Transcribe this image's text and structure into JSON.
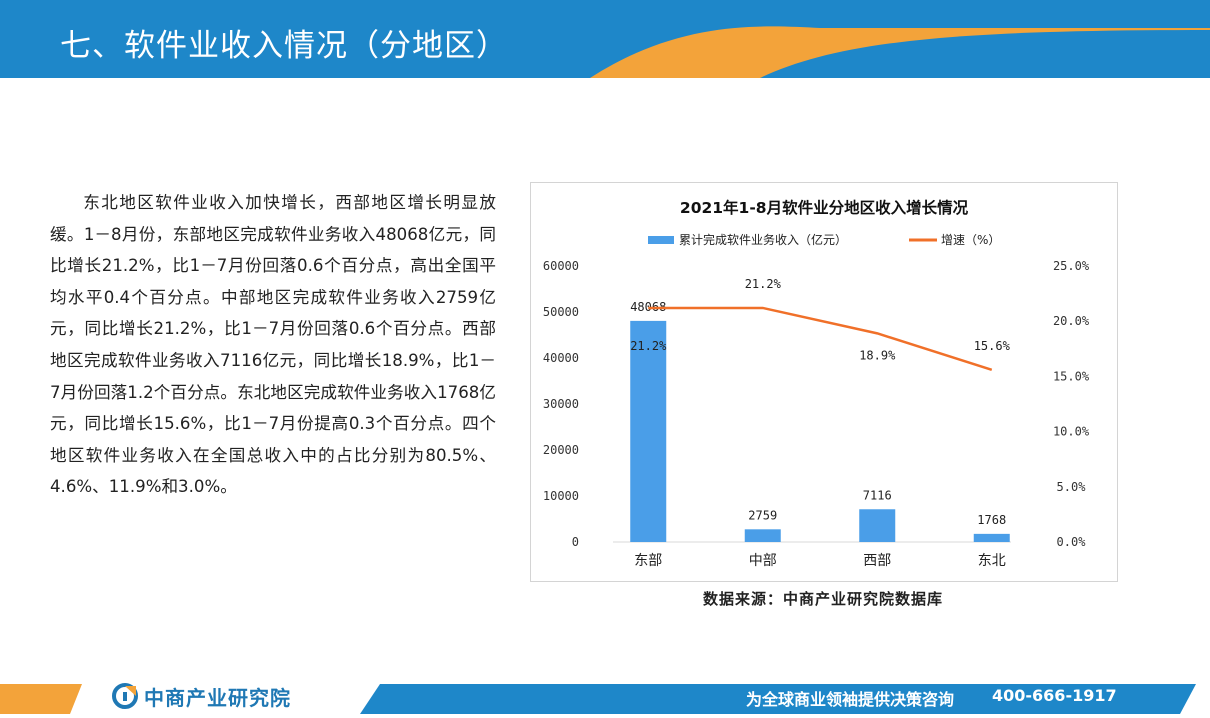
{
  "header": {
    "title": "七、软件业收入情况（分地区）",
    "colors": {
      "blue": "#1e87c9",
      "orange": "#f3a33a"
    }
  },
  "body": {
    "paragraph": "东北地区软件业收入加快增长，西部地区增长明显放缓。1－8月份，东部地区完成软件业务收入48068亿元，同比增长21.2%，比1－7月份回落0.6个百分点，高出全国平均水平0.4个百分点。中部地区完成软件业务收入2759亿元，同比增长21.2%，比1－7月份回落0.6个百分点。西部地区完成软件业务收入7116亿元，同比增长18.9%，比1－7月份回落1.2个百分点。东北地区完成软件业务收入1768亿元，同比增长15.6%，比1－7月份提高0.3个百分点。四个地区软件业务收入在全国总收入中的占比分别为80.5%、4.6%、11.9%和3.0%。"
  },
  "chart_data": {
    "type": "bar",
    "title": "2021年1-8月软件业分地区收入增长情况",
    "categories": [
      "东部",
      "中部",
      "西部",
      "东北"
    ],
    "series": [
      {
        "name": "累计完成软件业务收入（亿元）",
        "type": "bar",
        "axis": "left",
        "color": "#4a9ee8",
        "values": [
          48068,
          2759,
          7116,
          1768
        ]
      },
      {
        "name": "增速（%）",
        "type": "line",
        "axis": "right",
        "color": "#f07029",
        "values": [
          21.2,
          21.2,
          18.9,
          15.6
        ]
      }
    ],
    "bar_labels": [
      "48068",
      "2759",
      "7116",
      "1768"
    ],
    "line_labels": [
      "21.2%",
      "21.2%",
      "18.9%",
      "15.6%"
    ],
    "y_left": {
      "range": [
        0,
        60000
      ],
      "ticks": [
        "0",
        "10000",
        "20000",
        "30000",
        "40000",
        "50000",
        "60000"
      ]
    },
    "y_right": {
      "range": [
        0,
        25
      ],
      "ticks": [
        "0.0%",
        "5.0%",
        "10.0%",
        "15.0%",
        "20.0%",
        "25.0%"
      ]
    },
    "legend_position": "top",
    "grid": false
  },
  "source": "数据来源：中商产业研究院数据库",
  "footer": {
    "logo_text": "中商产业研究院",
    "slogan": "为全球商业领袖提供决策咨询",
    "phone": "400-666-1917"
  }
}
